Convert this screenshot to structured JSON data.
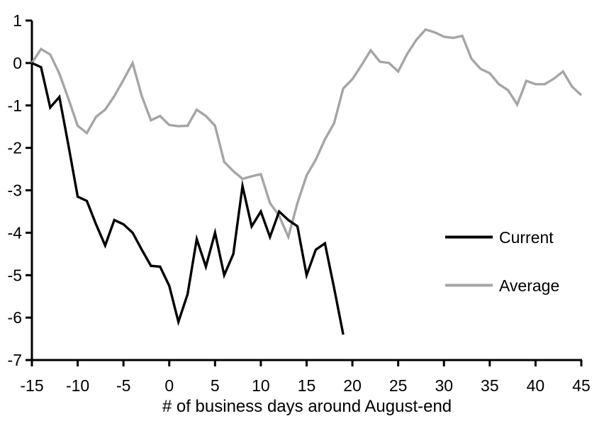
{
  "chart_data": {
    "type": "line",
    "title": "",
    "xlabel": "# of business days around August-end",
    "ylabel": "",
    "xlim": [
      -15,
      45
    ],
    "ylim": [
      -7,
      1
    ],
    "xticks": [
      -15,
      -10,
      -5,
      0,
      5,
      10,
      15,
      20,
      25,
      30,
      35,
      40,
      45
    ],
    "yticks": [
      1,
      0,
      -1,
      -2,
      -3,
      -4,
      -5,
      -6,
      -7
    ],
    "grid": false,
    "legend_position": "middle-right",
    "axis_color": "#000000",
    "background_color": "#ffffff",
    "series": [
      {
        "name": "Current",
        "color": "#000000",
        "x": [
          -15,
          -14,
          -13,
          -12,
          -11,
          -10,
          -9,
          -8,
          -7,
          -6,
          -5,
          -4,
          -3,
          -2,
          -1,
          0,
          1,
          2,
          3,
          4,
          5,
          6,
          7,
          8,
          9,
          10,
          11,
          12,
          13,
          14,
          15,
          16,
          17,
          18,
          19
        ],
        "values": [
          0.0,
          -0.1,
          -1.05,
          -0.8,
          -1.95,
          -3.15,
          -3.25,
          -3.8,
          -4.3,
          -3.7,
          -3.8,
          -4.0,
          -4.4,
          -4.78,
          -4.8,
          -5.25,
          -6.1,
          -5.45,
          -4.15,
          -4.8,
          -4.0,
          -5.0,
          -4.5,
          -2.9,
          -3.85,
          -3.5,
          -4.1,
          -3.5,
          -3.7,
          -3.85,
          -5.0,
          -4.4,
          -4.25,
          -5.3,
          -6.4
        ]
      },
      {
        "name": "Average",
        "color": "#a5a5a5",
        "x": [
          -15,
          -14,
          -13,
          -12,
          -11,
          -10,
          -9,
          -8,
          -7,
          -6,
          -5,
          -4,
          -3,
          -2,
          -1,
          0,
          1,
          2,
          3,
          4,
          5,
          6,
          7,
          8,
          9,
          10,
          11,
          12,
          13,
          14,
          15,
          16,
          17,
          18,
          19,
          20,
          21,
          22,
          23,
          24,
          25,
          26,
          27,
          28,
          29,
          30,
          31,
          32,
          33,
          34,
          35,
          36,
          37,
          38,
          39,
          40,
          41,
          42,
          43,
          44,
          45
        ],
        "values": [
          0.0,
          0.33,
          0.2,
          -0.25,
          -0.85,
          -1.48,
          -1.65,
          -1.27,
          -1.1,
          -0.78,
          -0.4,
          0.0,
          -0.78,
          -1.35,
          -1.25,
          -1.46,
          -1.49,
          -1.48,
          -1.1,
          -1.25,
          -1.48,
          -2.33,
          -2.55,
          -2.73,
          -2.67,
          -2.62,
          -3.3,
          -3.6,
          -4.1,
          -3.3,
          -2.65,
          -2.28,
          -1.8,
          -1.42,
          -0.6,
          -0.38,
          -0.05,
          0.3,
          0.03,
          0.0,
          -0.2,
          0.22,
          0.55,
          0.79,
          0.72,
          0.62,
          0.59,
          0.64,
          0.1,
          -0.14,
          -0.24,
          -0.5,
          -0.64,
          -0.98,
          -0.42,
          -0.5,
          -0.5,
          -0.37,
          -0.2,
          -0.56,
          -0.76
        ]
      }
    ]
  }
}
